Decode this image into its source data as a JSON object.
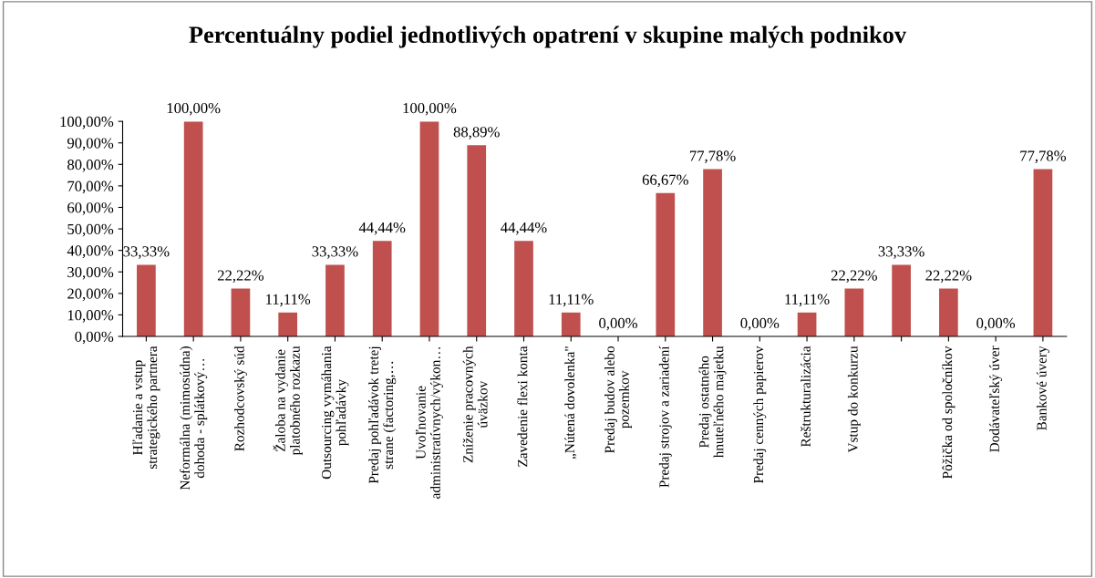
{
  "chart_data": {
    "type": "bar",
    "title": "Percentuálny podiel jednotlivých opatrení v skupine malých podnikov",
    "categories": [
      "Hľadanie a vstup\nstrategického partnera",
      "Neformálna (mimosúdna)\ndohoda - splátkový…",
      "Rozhodcovský súd",
      "Žaloba na vydanie\nplatobného rozkazu",
      "Outsourcing vymáhania\npohľadávky",
      "Predaj pohľadávok tretej\nstrane (factoring,…",
      "Uvoľnovanie\nadministratívnych/výkon…",
      "Zníženie pracovných\núväzkov",
      "Zavedenie flexi konta",
      "„Nútená dovolenka\"",
      "Predaj budov alebo\npozemkov",
      "Predaj strojov a zariadení",
      "Predaj ostatného\nhnuteľného majetku",
      "Predaj cenných papierov",
      "Reštrukturalizácia",
      "Vstup do konkurzu",
      null,
      "Pôžička od spoločníkov",
      "Dodávateľský úver",
      "Bankové úvery"
    ],
    "values": [
      33.33,
      100,
      22.22,
      11.11,
      33.33,
      44.44,
      100,
      88.89,
      44.44,
      11.11,
      0,
      66.67,
      77.78,
      0,
      11.11,
      22.22,
      33.33,
      22.22,
      0,
      77.78
    ],
    "value_labels": [
      "33,33%",
      "100,00%",
      "22,22%",
      "11,11%",
      "33,33%",
      "44,44%",
      "100,00%",
      "88,89%",
      "44,44%",
      "11,11%",
      "0,00%",
      "66,67%",
      "77,78%",
      "0,00%",
      "11,11%",
      "22,22%",
      "33,33%",
      "22,22%",
      "0,00%",
      "77,78%"
    ],
    "color": "#c0504d",
    "ylim": [
      0,
      100
    ],
    "yticks": [
      {
        "value": 0,
        "label": "0,00%"
      },
      {
        "value": 10,
        "label": "10,00%"
      },
      {
        "value": 20,
        "label": "20,00%"
      },
      {
        "value": 30,
        "label": "30,00%"
      },
      {
        "value": 40,
        "label": "40,00%"
      },
      {
        "value": 50,
        "label": "50,00%"
      },
      {
        "value": 60,
        "label": "60,00%"
      },
      {
        "value": 70,
        "label": "70,00%"
      },
      {
        "value": 80,
        "label": "80,00%"
      },
      {
        "value": 90,
        "label": "90,00%"
      },
      {
        "value": 100,
        "label": "100,00%"
      }
    ],
    "grid": false,
    "legend": false
  }
}
